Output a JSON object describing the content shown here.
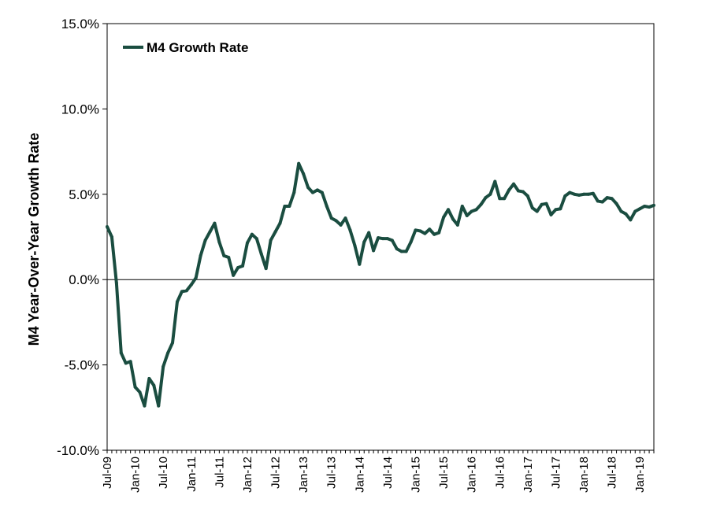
{
  "chart_data": {
    "type": "line",
    "title": "",
    "ylabel": "M4 Year-Over-Year Growth Rate",
    "xlabel": "",
    "ylim": [
      -10,
      15
    ],
    "y_ticks": [
      "15.0%",
      "10.0%",
      "5.0%",
      "0.0%",
      "-5.0%",
      "-10.0%"
    ],
    "y_tick_values": [
      15,
      10,
      5,
      0,
      -5,
      -10
    ],
    "x_tick_labels": [
      "Jul-09",
      "Jan-10",
      "Jul-10",
      "Jan-11",
      "Jul-11",
      "Jan-12",
      "Jul-12",
      "Jan-13",
      "Jul-13",
      "Jan-14",
      "Jul-14",
      "Jan-15",
      "Jul-15",
      "Jan-16",
      "Jul-16",
      "Jan-17",
      "Jul-17",
      "Jan-18",
      "Jul-18",
      "Jan-19"
    ],
    "x_start": "Jul-09",
    "x_end": "Jun-19",
    "grid": false,
    "legend_position": "top-left",
    "line_color": "#1a4d40",
    "series": [
      {
        "name": "M4 Growth Rate",
        "values": [
          3.1,
          2.5,
          -0.2,
          -4.3,
          -4.9,
          -4.8,
          -6.3,
          -6.6,
          -7.4,
          -5.8,
          -6.2,
          -7.4,
          -5.1,
          -4.3,
          -3.7,
          -1.3,
          -0.7,
          -0.65,
          -0.3,
          0.1,
          1.4,
          2.3,
          2.8,
          3.3,
          2.2,
          1.4,
          1.3,
          0.25,
          0.7,
          0.8,
          2.15,
          2.65,
          2.4,
          1.5,
          0.65,
          2.3,
          2.8,
          3.3,
          4.3,
          4.3,
          5.1,
          6.8,
          6.2,
          5.4,
          5.1,
          5.25,
          5.1,
          4.3,
          3.6,
          3.45,
          3.2,
          3.6,
          2.9,
          2.0,
          0.9,
          2.2,
          2.75,
          1.7,
          2.45,
          2.4,
          2.4,
          2.3,
          1.8,
          1.65,
          1.65,
          2.2,
          2.9,
          2.85,
          2.7,
          2.95,
          2.65,
          2.75,
          3.65,
          4.1,
          3.55,
          3.2,
          4.3,
          3.75,
          4.0,
          4.1,
          4.4,
          4.8,
          5.0,
          5.75,
          4.75,
          4.75,
          5.25,
          5.6,
          5.2,
          5.15,
          4.9,
          4.2,
          4.0,
          4.4,
          4.45,
          3.8,
          4.1,
          4.15,
          4.9,
          5.1,
          5.0,
          4.95,
          5.0,
          5.0,
          5.05,
          4.6,
          4.55,
          4.8,
          4.75,
          4.45,
          4.0,
          3.85,
          3.5,
          4.0,
          4.15,
          4.3,
          4.25,
          4.35
        ]
      }
    ]
  }
}
